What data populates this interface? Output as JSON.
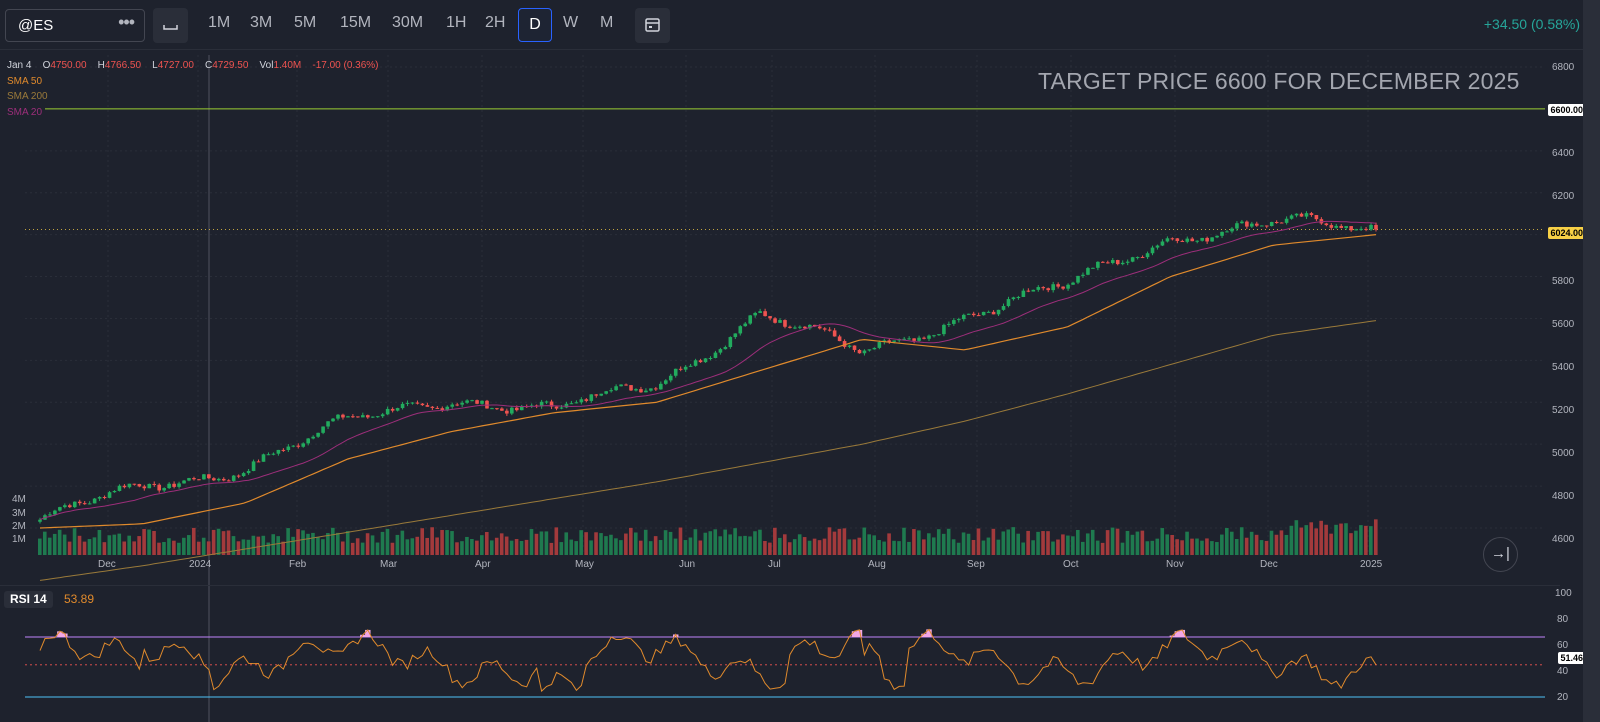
{
  "symbol": {
    "name": "@ES",
    "menu_icon": "more-dots-icon"
  },
  "toolbar": {
    "chart_type_icon": "candle-style-icon",
    "timeframes": [
      "1M",
      "3M",
      "5M",
      "15M",
      "30M",
      "1H",
      "2H",
      "D",
      "W",
      "M"
    ],
    "active_timeframe": "D",
    "calendar_icon": "calendar-icon"
  },
  "change": "+34.50 (0.58%)",
  "legend": {
    "date": "Jan 4",
    "open_label": "O",
    "open": "4750.00",
    "high_label": "H",
    "high": "4766.50",
    "low_label": "L",
    "low": "4727.00",
    "close_label": "C",
    "close": "4729.50",
    "vol_label": "Vol",
    "vol": "1.40M",
    "chg": "-17.00 (0.36%)",
    "sma50": "SMA 50",
    "sma200": "SMA 200",
    "sma20": "SMA 20"
  },
  "annotation": "TARGET PRICE  6600 FOR DECEMBER 2025",
  "price_axis": [
    "6800",
    "6600.00",
    "6400",
    "6200",
    "6024.00",
    "5800",
    "5600",
    "5400",
    "5200",
    "5000",
    "4800",
    "4600"
  ],
  "target_tag": "6600.00",
  "last_tag": "6024.00",
  "volume_axis": [
    "4M",
    "3M",
    "2M",
    "1M"
  ],
  "time_axis": [
    "Dec",
    "2024",
    "Feb",
    "Mar",
    "Apr",
    "May",
    "Jun",
    "Jul",
    "Aug",
    "Sep",
    "Oct",
    "Nov",
    "Dec",
    "2025"
  ],
  "rsi": {
    "label": "RSI 14",
    "value": "53.89",
    "axis": [
      "100",
      "80",
      "60",
      "40",
      "20"
    ],
    "last_tag": "51.46"
  },
  "scroll_icon": "scroll-to-latest-icon",
  "colors": {
    "up": "#26a69a",
    "up_candle": "#22ab5e",
    "down": "#ef5350",
    "sma50": "#e08a2c",
    "sma200": "#9a7a3a",
    "sma20": "#9c2e7a",
    "target_line": "#9acd32",
    "rsi_line": "#e08a2c",
    "rsi_fill": "#f2a7e6"
  },
  "chart_data": {
    "type": "candlestick",
    "series": [
      {
        "name": "SMA 50"
      },
      {
        "name": "SMA 200"
      },
      {
        "name": "SMA 20"
      }
    ],
    "x": [
      "Dec",
      "2024",
      "Feb",
      "Mar",
      "Apr",
      "May",
      "Jun",
      "Jul",
      "Aug",
      "Sep",
      "Oct",
      "Nov",
      "Dec",
      "2025"
    ],
    "close_approx": [
      4640,
      4790,
      4900,
      5100,
      5230,
      5150,
      5300,
      5620,
      5430,
      5620,
      5750,
      6000,
      6050,
      6024
    ],
    "sma50_approx": [
      4600,
      4620,
      4720,
      4930,
      5060,
      5150,
      5200,
      5350,
      5500,
      5450,
      5560,
      5800,
      5950,
      6000
    ],
    "sma200_approx": [
      4350,
      4420,
      4500,
      4580,
      4660,
      4740,
      4820,
      4910,
      5000,
      5110,
      5240,
      5380,
      5520,
      5590
    ],
    "target_level": 6600,
    "last_price": 6024,
    "ylim": [
      4560,
      6800
    ],
    "rsi_value": 53.89,
    "rsi_last": 51.46,
    "rsi_levels": [
      70,
      30
    ],
    "rsi_ylim": [
      20,
      100
    ]
  }
}
